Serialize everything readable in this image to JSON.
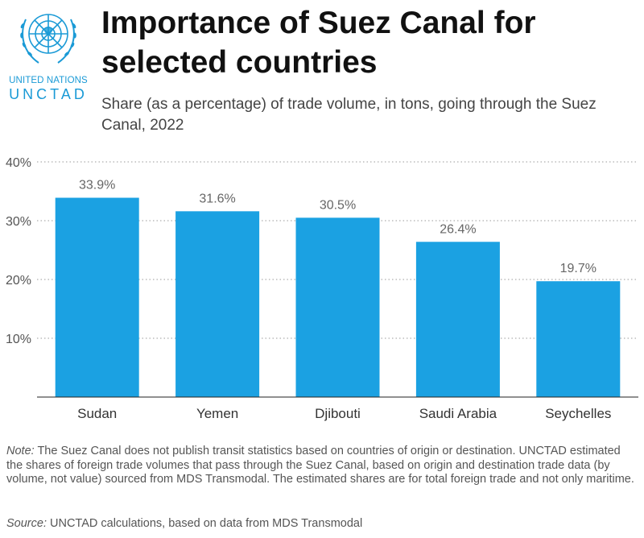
{
  "logo": {
    "org_line": "UNITED NATIONS",
    "acronym": "UNCTAD",
    "color": "#1a9ad6"
  },
  "header": {
    "title": "Importance of Suez Canal for selected countries",
    "subtitle": "Share (as a percentage) of trade volume, in tons, going through the Suez Canal, 2022"
  },
  "chart_data": {
    "type": "bar",
    "categories": [
      "Sudan",
      "Yemen",
      "Djibouti",
      "Saudi Arabia",
      "Seychelles"
    ],
    "values": [
      33.9,
      31.6,
      30.5,
      26.4,
      19.7
    ],
    "value_labels": [
      "33.9%",
      "31.6%",
      "30.5%",
      "26.4%",
      "19.7%"
    ],
    "ylim": [
      0,
      40
    ],
    "yticks": [
      10,
      20,
      30,
      40
    ],
    "ytick_labels": [
      "10%",
      "20%",
      "30%",
      "40%"
    ],
    "xlabel": "",
    "ylabel": "",
    "grid": "horizontal dotted",
    "bar_color": "#1ba1e2"
  },
  "footer": {
    "note_label": "Note:",
    "note_text": "The Suez Canal does not publish transit statistics based on countries of origin or destination. UNCTAD estimated the shares of foreign trade volumes that pass through the Suez Canal, based on origin and destination trade data (by volume, not value) sourced from MDS Transmodal. The estimated shares are for total foreign trade and not only maritime.",
    "source_label": "Source:",
    "source_text": "UNCTAD calculations, based on data from MDS Transmodal"
  }
}
